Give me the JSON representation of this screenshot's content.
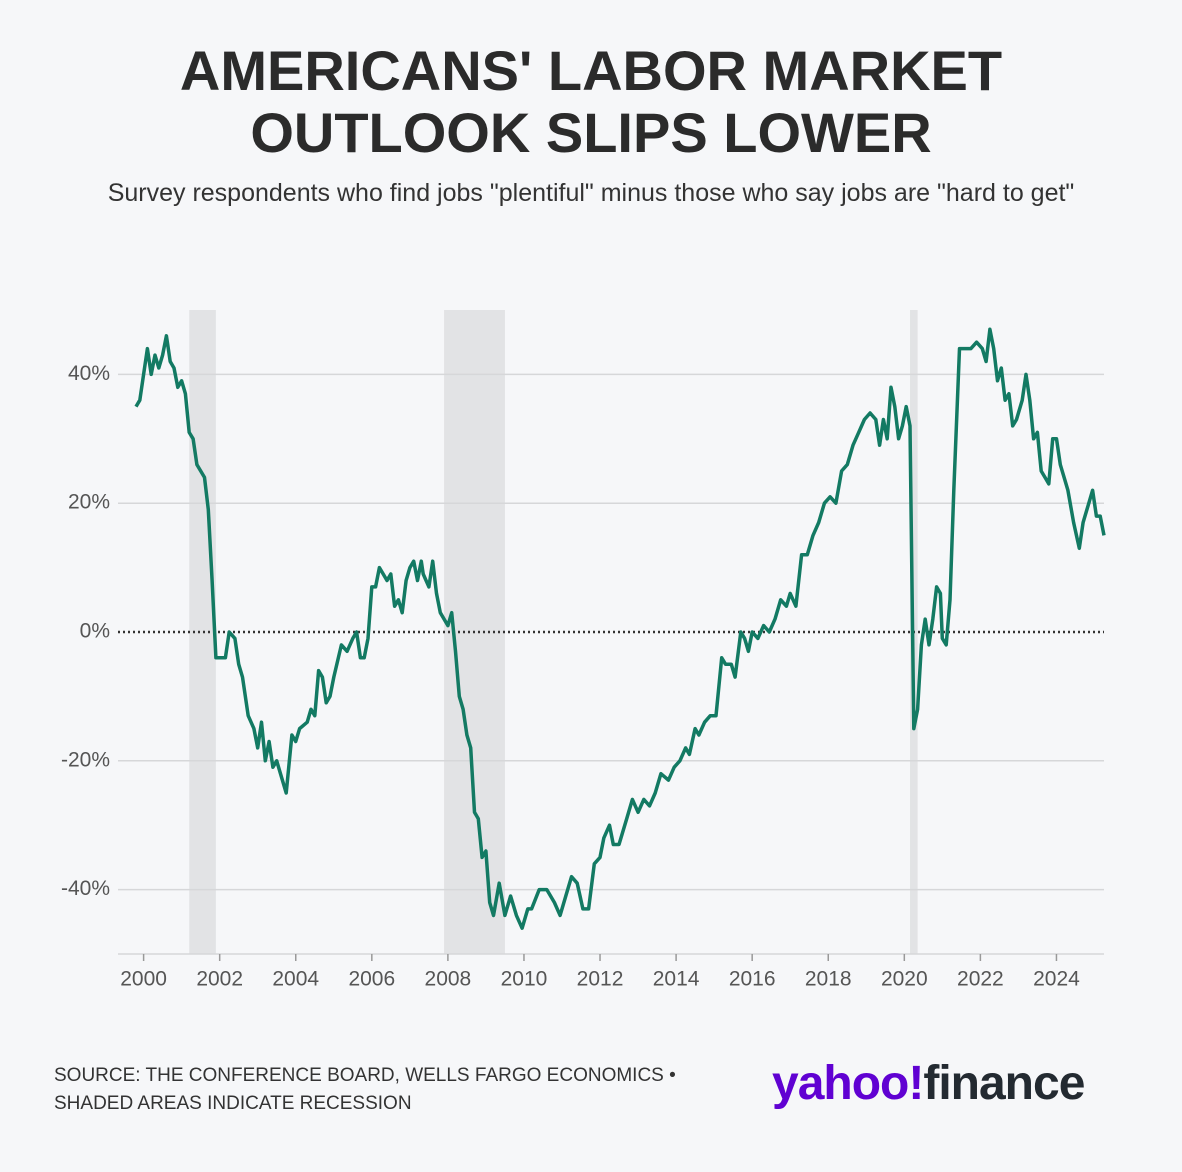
{
  "chart_data": {
    "type": "line",
    "title": "AMERICANS' LABOR MARKET OUTLOOK SLIPS LOWER",
    "subtitle": "Survey respondents who find jobs \"plentiful\" minus those who say jobs are \"hard to get\"",
    "x": [
      1999.8,
      1999.9,
      2000.0,
      2000.1,
      2000.2,
      2000.3,
      2000.4,
      2000.5,
      2000.6,
      2000.7,
      2000.8,
      2000.9,
      2001.0,
      2001.1,
      2001.2,
      2001.3,
      2001.4,
      2001.6,
      2001.7,
      2001.8,
      2001.9,
      2002.0,
      2002.15,
      2002.25,
      2002.4,
      2002.5,
      2002.6,
      2002.75,
      2002.9,
      2003.0,
      2003.1,
      2003.2,
      2003.3,
      2003.4,
      2003.5,
      2003.6,
      2003.75,
      2003.9,
      2004.0,
      2004.1,
      2004.3,
      2004.4,
      2004.5,
      2004.6,
      2004.7,
      2004.8,
      2004.9,
      2005.0,
      2005.2,
      2005.35,
      2005.5,
      2005.6,
      2005.7,
      2005.8,
      2005.9,
      2006.0,
      2006.1,
      2006.2,
      2006.3,
      2006.4,
      2006.5,
      2006.6,
      2006.7,
      2006.8,
      2006.9,
      2007.0,
      2007.1,
      2007.2,
      2007.3,
      2007.35,
      2007.5,
      2007.6,
      2007.7,
      2007.8,
      2007.9,
      2008.0,
      2008.1,
      2008.2,
      2008.3,
      2008.4,
      2008.5,
      2008.6,
      2008.7,
      2008.8,
      2008.9,
      2009.0,
      2009.1,
      2009.2,
      2009.35,
      2009.5,
      2009.65,
      2009.8,
      2009.95,
      2010.1,
      2010.2,
      2010.4,
      2010.6,
      2010.8,
      2010.95,
      2011.1,
      2011.25,
      2011.4,
      2011.55,
      2011.7,
      2011.85,
      2012.0,
      2012.1,
      2012.25,
      2012.35,
      2012.5,
      2012.7,
      2012.85,
      2013.0,
      2013.15,
      2013.3,
      2013.45,
      2013.6,
      2013.8,
      2013.95,
      2014.1,
      2014.25,
      2014.35,
      2014.5,
      2014.6,
      2014.75,
      2014.9,
      2015.05,
      2015.2,
      2015.3,
      2015.45,
      2015.55,
      2015.7,
      2015.8,
      2015.9,
      2016.0,
      2016.15,
      2016.3,
      2016.45,
      2016.6,
      2016.75,
      2016.9,
      2017.0,
      2017.15,
      2017.3,
      2017.45,
      2017.6,
      2017.75,
      2017.9,
      2018.05,
      2018.2,
      2018.35,
      2018.5,
      2018.65,
      2018.8,
      2018.95,
      2019.1,
      2019.25,
      2019.35,
      2019.45,
      2019.55,
      2019.65,
      2019.75,
      2019.85,
      2019.95,
      2020.05,
      2020.15,
      2020.25,
      2020.35,
      2020.45,
      2020.55,
      2020.65,
      2020.75,
      2020.85,
      2020.95,
      2021.0,
      2021.1,
      2021.2,
      2021.3,
      2021.45,
      2021.6,
      2021.75,
      2021.9,
      2022.05,
      2022.15,
      2022.25,
      2022.35,
      2022.45,
      2022.55,
      2022.65,
      2022.75,
      2022.85,
      2022.95,
      2023.1,
      2023.2,
      2023.3,
      2023.4,
      2023.5,
      2023.6,
      2023.7,
      2023.8,
      2023.9,
      2024.0,
      2024.1,
      2024.2,
      2024.3,
      2024.45,
      2024.6,
      2024.7,
      2024.85,
      2024.95,
      2025.05,
      2025.15,
      2025.25
    ],
    "series": [
      {
        "name": "Plentiful minus hard to get",
        "color": "#137a63",
        "values": [
          35,
          36,
          40,
          44,
          40,
          43,
          41,
          43,
          46,
          42,
          41,
          38,
          39,
          37,
          31,
          30,
          26,
          24,
          19,
          8,
          -4,
          -4,
          -4,
          0,
          -1,
          -5,
          -7,
          -13,
          -15,
          -18,
          -14,
          -20,
          -17,
          -21,
          -20,
          -22,
          -25,
          -16,
          -17,
          -15,
          -14,
          -12,
          -13,
          -6,
          -7,
          -11,
          -10,
          -7,
          -2,
          -3,
          -1,
          0,
          -4,
          -4,
          -1,
          7,
          7,
          10,
          9,
          8,
          9,
          4,
          5,
          3,
          8,
          10,
          11,
          8,
          11,
          9,
          7,
          11,
          6,
          3,
          2,
          1,
          3,
          -3,
          -10,
          -12,
          -16,
          -18,
          -28,
          -29,
          -35,
          -34,
          -42,
          -44,
          -39,
          -44,
          -41,
          -44,
          -46,
          -43,
          -43,
          -40,
          -40,
          -42,
          -44,
          -41,
          -38,
          -39,
          -43,
          -43,
          -36,
          -35,
          -32,
          -30,
          -33,
          -33,
          -29,
          -26,
          -28,
          -26,
          -27,
          -25,
          -22,
          -23,
          -21,
          -20,
          -18,
          -19,
          -15,
          -16,
          -14,
          -13,
          -13,
          -4,
          -5,
          -5,
          -7,
          0,
          -1,
          -3,
          0,
          -1,
          1,
          0,
          2,
          5,
          4,
          6,
          4,
          12,
          12,
          15,
          17,
          20,
          21,
          20,
          25,
          26,
          29,
          31,
          33,
          34,
          33,
          29,
          33,
          30,
          38,
          35,
          30,
          32,
          35,
          32,
          -15,
          -12,
          -2,
          2,
          -2,
          2,
          7,
          6,
          -1,
          -2,
          5,
          22,
          44,
          44,
          44,
          45,
          44,
          42,
          47,
          44,
          39,
          41,
          36,
          37,
          32,
          33,
          36,
          40,
          36,
          30,
          31,
          25,
          24,
          23,
          30,
          30,
          26,
          24,
          22,
          17,
          13,
          17,
          20,
          22,
          18,
          18,
          15
        ]
      }
    ],
    "recessions": [
      [
        2001.2,
        2001.9
      ],
      [
        2007.9,
        2009.5
      ],
      [
        2020.15,
        2020.35
      ]
    ],
    "xlim": [
      1999.8,
      2025.25
    ],
    "xticks": [
      2000,
      2002,
      2004,
      2006,
      2008,
      2010,
      2012,
      2014,
      2016,
      2018,
      2020,
      2022,
      2024
    ],
    "ylim": [
      -50,
      50
    ],
    "yticks": [
      {
        "value": -40,
        "label": "-40%"
      },
      {
        "value": -20,
        "label": "-20%"
      },
      {
        "value": 0,
        "label": "0%"
      },
      {
        "value": 20,
        "label": "20%"
      },
      {
        "value": 40,
        "label": "40%"
      }
    ],
    "grid": true
  },
  "footer": {
    "source": "SOURCE: THE CONFERENCE BOARD, WELLS FARGO ECONOMICS •",
    "note": "SHADED AREAS INDICATE RECESSION"
  },
  "logo": {
    "yahoo": "yahoo!",
    "finance": "finance"
  }
}
